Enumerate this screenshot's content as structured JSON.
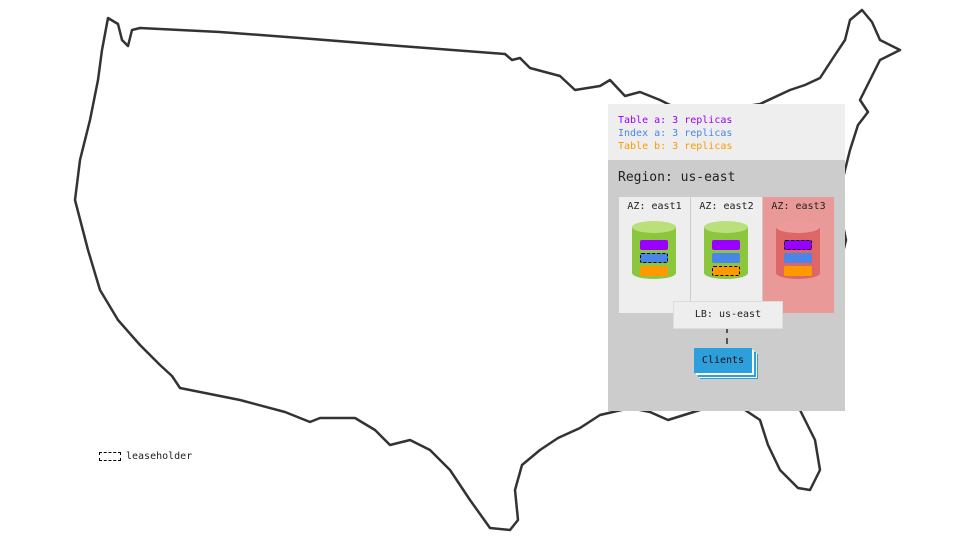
{
  "legend": [
    {
      "text": "Table a: 3 replicas",
      "color": "#9900ff"
    },
    {
      "text": "Index a: 3 replicas",
      "color": "#4a86e8"
    },
    {
      "text": "Table b: 3 replicas",
      "color": "#ff9900"
    }
  ],
  "region": {
    "title": "Region: us-east",
    "zones": [
      {
        "label": "AZ: east1",
        "status": "healthy",
        "leaseholder": "Index a"
      },
      {
        "label": "AZ: east2",
        "status": "healthy",
        "leaseholder": "Table b"
      },
      {
        "label": "AZ: east3",
        "status": "failed",
        "leaseholder": "Table a"
      }
    ],
    "load_balancer": "LB: us-east",
    "clients": "Clients"
  },
  "key": {
    "leaseholder_label": "leaseholder"
  }
}
